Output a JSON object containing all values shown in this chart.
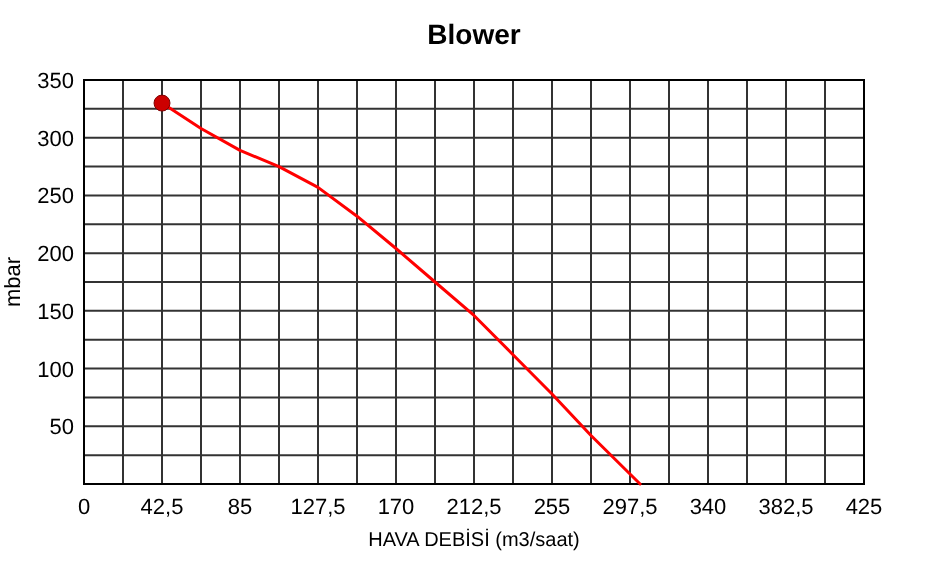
{
  "chart_data": {
    "type": "line",
    "title": "Blower",
    "xlabel": "HAVA DEBİSİ (m3/saat)",
    "ylabel": "mbar",
    "xlim": [
      0,
      425
    ],
    "ylim": [
      0,
      350
    ],
    "xticks": [
      {
        "value": 0,
        "label": "0"
      },
      {
        "value": 21.25,
        "label": null
      },
      {
        "value": 42.5,
        "label": "42,5"
      },
      {
        "value": 63.75,
        "label": null
      },
      {
        "value": 85,
        "label": "85"
      },
      {
        "value": 106.25,
        "label": null
      },
      {
        "value": 127.5,
        "label": "127,5"
      },
      {
        "value": 148.75,
        "label": null
      },
      {
        "value": 170,
        "label": "170"
      },
      {
        "value": 191.25,
        "label": null
      },
      {
        "value": 212.5,
        "label": "212,5"
      },
      {
        "value": 233.75,
        "label": null
      },
      {
        "value": 255,
        "label": "255"
      },
      {
        "value": 276.25,
        "label": null
      },
      {
        "value": 297.5,
        "label": "297,5"
      },
      {
        "value": 318.75,
        "label": null
      },
      {
        "value": 340,
        "label": "340"
      },
      {
        "value": 361.25,
        "label": null
      },
      {
        "value": 382.5,
        "label": "382,5"
      },
      {
        "value": 403.75,
        "label": null
      },
      {
        "value": 425,
        "label": "425"
      }
    ],
    "yticks": [
      {
        "value": 0,
        "label": null
      },
      {
        "value": 25,
        "label": null
      },
      50,
      {
        "value": 75,
        "label": null
      },
      100,
      {
        "value": 125,
        "label": null
      },
      150,
      {
        "value": 175,
        "label": null
      },
      200,
      {
        "value": 225,
        "label": null
      },
      250,
      {
        "value": 275,
        "label": null
      },
      300,
      {
        "value": 325,
        "label": null
      },
      350
    ],
    "grid": true,
    "series": [
      {
        "color": "#ff0000",
        "x": [
          42.5,
          63.75,
          85,
          106.25,
          127.5,
          148.75,
          170,
          191.25,
          212.5,
          233.75,
          255,
          276.25,
          303
        ],
        "values": [
          330,
          308,
          289,
          275,
          257,
          232,
          204,
          175,
          146,
          112,
          78,
          42,
          0
        ]
      },
      {
        "type": "scatter",
        "color": "#cc0000",
        "marker": "circle",
        "x": [
          42.5
        ],
        "values": [
          330
        ]
      }
    ]
  }
}
